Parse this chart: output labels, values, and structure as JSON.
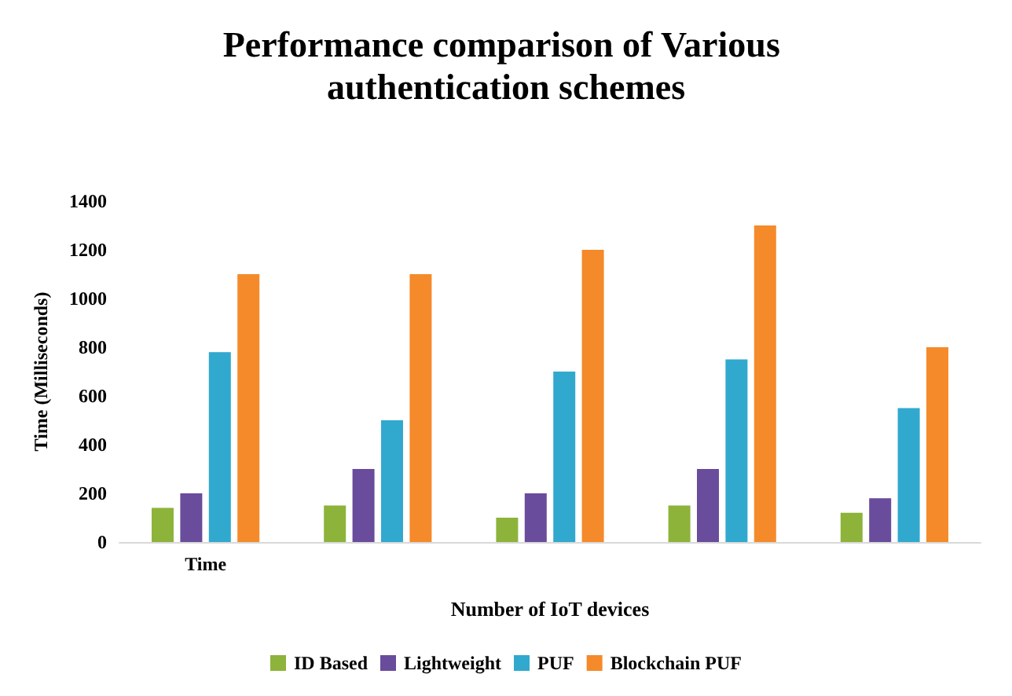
{
  "chart_data": {
    "type": "bar",
    "title": "Performance comparison of Various authentication schemes",
    "xlabel": "Number of IoT devices",
    "ylabel": "Time (Milliseconds)",
    "categories": [
      "Time",
      null,
      null,
      null,
      null
    ],
    "series": [
      {
        "name": "ID Based",
        "color": "#8db33a",
        "values": [
          140,
          150,
          100,
          150,
          120
        ]
      },
      {
        "name": "Lightweight",
        "color": "#6a4c9c",
        "values": [
          200,
          300,
          200,
          300,
          180
        ]
      },
      {
        "name": "PUF",
        "color": "#31a9cf",
        "values": [
          780,
          500,
          700,
          750,
          550
        ]
      },
      {
        "name": "Blockchain PUF",
        "color": "#f58a2a",
        "values": [
          1100,
          1100,
          1200,
          1300,
          800
        ]
      }
    ],
    "ylim": [
      0,
      1400
    ],
    "yticks": [
      0,
      200,
      400,
      600,
      800,
      1000,
      1200,
      1400
    ],
    "grid": false,
    "legend": "bottom"
  }
}
